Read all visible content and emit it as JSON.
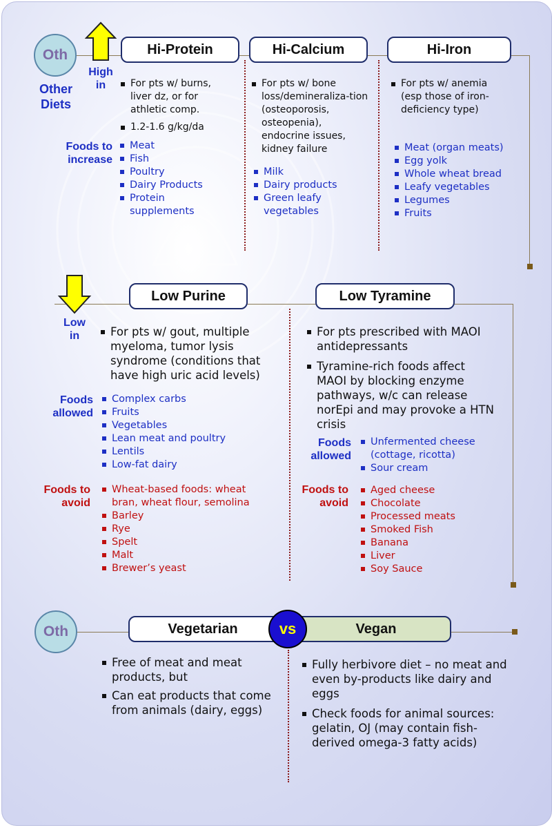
{
  "side": {
    "oth_label": "Oth",
    "other_diets": "Other\nDiets",
    "high_in": "High\nin",
    "low_in": "Low\nin"
  },
  "hi_protein": {
    "title": "Hi-Protein",
    "bullets": [
      "For pts w/ burns, liver dz, or for athletic comp.",
      "1.2-1.6 g/kg/da"
    ],
    "foods_label": "Foods to\nincrease",
    "foods": [
      "Meat",
      "Fish",
      "Poultry",
      "Dairy Products",
      "Protein supplements"
    ]
  },
  "hi_calcium": {
    "title": "Hi-Calcium",
    "bullets": [
      "For pts w/ bone loss/demineraliza-tion (osteoporosis, osteopenia), endocrine issues, kidney failure"
    ],
    "foods": [
      "Milk",
      "Dairy products",
      "Green leafy vegetables"
    ]
  },
  "hi_iron": {
    "title": "Hi-Iron",
    "bullets": [
      "For pts w/ anemia (esp those of iron-deficiency type)"
    ],
    "foods": [
      "Meat (organ meats)",
      "Egg yolk",
      "Whole wheat bread",
      "Leafy vegetables",
      "Legumes",
      "Fruits"
    ]
  },
  "low_purine": {
    "title": "Low Purine",
    "bullets": [
      "For pts w/ gout, multiple myeloma, tumor lysis syndrome (conditions that have high uric acid levels)"
    ],
    "allowed_label": "Foods\nallowed",
    "allowed": [
      "Complex carbs",
      "Fruits",
      "Vegetables",
      "Lean meat and poultry",
      "Lentils",
      "Low-fat dairy"
    ],
    "avoid_label": "Foods to\navoid",
    "avoid": [
      "Wheat-based foods: wheat bran, wheat flour, semolina",
      "Barley",
      "Rye",
      "Spelt",
      "Malt",
      "Brewer’s yeast"
    ]
  },
  "low_tyramine": {
    "title": "Low Tyramine",
    "bullets": [
      "For pts prescribed with MAOI antidepressants",
      "Tyramine-rich foods affect MAOI by blocking enzyme pathways, w/c can release norEpi and may provoke a HTN crisis"
    ],
    "allowed_label": "Foods\nallowed",
    "allowed": [
      "Unfermented cheese (cottage, ricotta)",
      "Sour cream"
    ],
    "avoid_label": "Foods to\navoid",
    "avoid": [
      "Aged cheese",
      "Chocolate",
      "Processed meats",
      "Smoked Fish",
      "Banana",
      "Liver",
      "Soy Sauce"
    ]
  },
  "veg": {
    "oth_label": "Oth",
    "vegetarian_title": "Vegetarian",
    "vs_label": "vs",
    "vegan_title": "Vegan",
    "vegetarian_bullets": [
      "Free of meat and meat products, but",
      "Can eat products that come from animals (dairy, eggs)"
    ],
    "vegan_bullets": [
      "Fully herbivore diet – no meat and even by-products like dairy and eggs",
      "Check foods for animal sources: gelatin, OJ (may contain fish-derived omega-3 fatty acids)"
    ]
  },
  "colors": {
    "blue_text": "#1d2fc4",
    "red_text": "#c01010",
    "arrow_yellow": "#ffff00",
    "circle_fill": "#b9dde6",
    "vegan_fill": "#d8e4c4",
    "vs_fill": "#1a0fd0"
  },
  "icons": [
    "up-arrow-icon",
    "down-arrow-icon",
    "emblem-watermark"
  ]
}
